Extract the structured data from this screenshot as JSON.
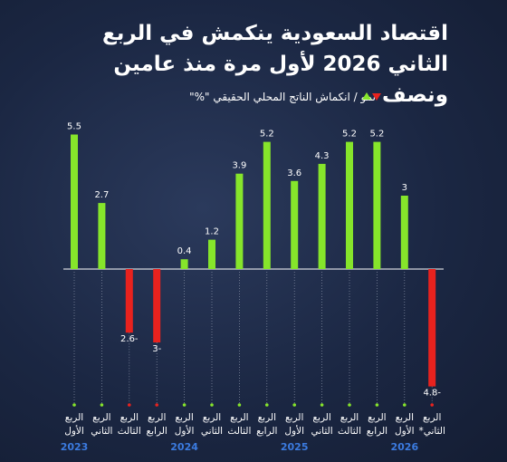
{
  "chart_data": {
    "type": "bar",
    "title": "اقتصاد السعودية ينكمش في الربع الثاني 2026 لأول مرة منذ عامين ونصف",
    "legend_label": "نمو / انكماش الناتج المحلي الحقيقي \"%\"",
    "categories": [
      "الربع الأول",
      "الربع الثاني",
      "الربع الثالث",
      "الربع الرابع",
      "الربع الأول",
      "الربع الثاني",
      "الربع الثالث",
      "الربع الرابع",
      "الربع الأول",
      "الربع الثاني",
      "الربع الثالث",
      "الربع الرابع",
      "الربع الأول",
      "الربع الثاني*"
    ],
    "years": [
      "2023",
      null,
      null,
      null,
      "2024",
      null,
      null,
      null,
      "2025",
      null,
      null,
      null,
      "2026",
      null
    ],
    "values": [
      5.5,
      2.7,
      -2.6,
      -3,
      0.4,
      1.2,
      3.9,
      5.2,
      3.6,
      4.3,
      5.2,
      5.2,
      3,
      -4.8
    ],
    "value_labels": [
      "5.5",
      "2.7",
      "2.6-",
      "3-",
      "0.4",
      "1.2",
      "3.9",
      "5.2",
      "3.6",
      "4.3",
      "5.2",
      "5.2",
      "3",
      "4.8-"
    ],
    "positive_color": "#86e52b",
    "negative_color": "#e8221e",
    "ylim": [
      -5,
      6
    ]
  }
}
